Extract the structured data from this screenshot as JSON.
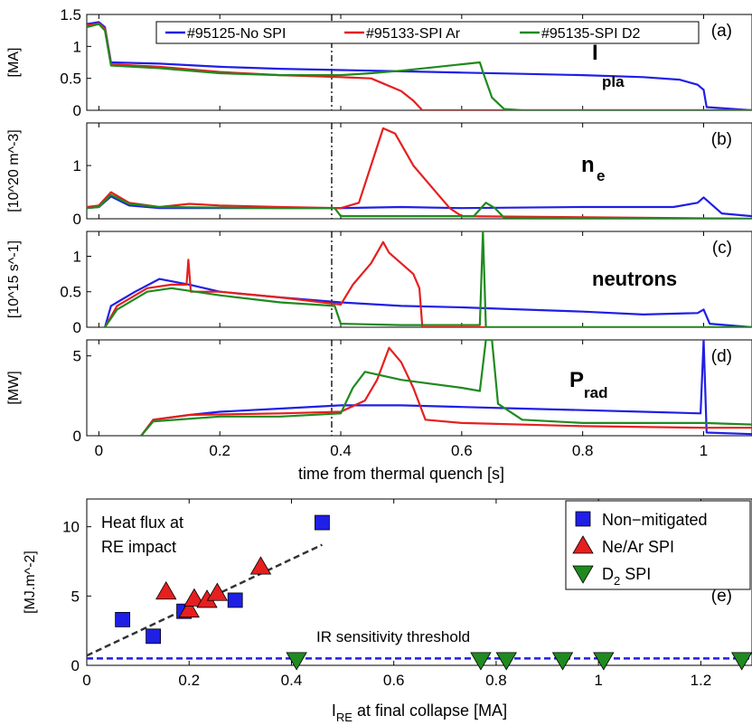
{
  "chart_data": [
    {
      "panel": "(a)",
      "type": "line",
      "ylabel": "[MA]",
      "yticks": [
        "0",
        "0.5",
        "1",
        "1.5"
      ],
      "ylim": [
        0,
        1.5
      ],
      "xlim": [
        -0.02,
        1.08
      ],
      "annotation": {
        "main": "I",
        "sub": "pla"
      },
      "legend_entries": [
        "#95125-No SPI",
        "#95133-SPI Ar",
        "#95135-SPI D2"
      ],
      "series": [
        {
          "name": "#95125-No SPI",
          "color": "#1f1fe6",
          "points": [
            [
              -0.02,
              1.35
            ],
            [
              0.0,
              1.38
            ],
            [
              0.01,
              1.3
            ],
            [
              0.02,
              0.75
            ],
            [
              0.1,
              0.73
            ],
            [
              0.2,
              0.68
            ],
            [
              0.3,
              0.65
            ],
            [
              0.4,
              0.63
            ],
            [
              0.5,
              0.61
            ],
            [
              0.6,
              0.59
            ],
            [
              0.7,
              0.57
            ],
            [
              0.8,
              0.55
            ],
            [
              0.9,
              0.52
            ],
            [
              0.96,
              0.48
            ],
            [
              0.99,
              0.4
            ],
            [
              1.0,
              0.32
            ],
            [
              1.005,
              0.05
            ],
            [
              1.08,
              0.0
            ]
          ]
        },
        {
          "name": "#95133-SPI Ar",
          "color": "#e61f1f",
          "points": [
            [
              -0.02,
              1.33
            ],
            [
              0.0,
              1.36
            ],
            [
              0.01,
              1.28
            ],
            [
              0.02,
              0.72
            ],
            [
              0.1,
              0.68
            ],
            [
              0.2,
              0.6
            ],
            [
              0.3,
              0.55
            ],
            [
              0.4,
              0.52
            ],
            [
              0.45,
              0.5
            ],
            [
              0.47,
              0.42
            ],
            [
              0.5,
              0.3
            ],
            [
              0.52,
              0.15
            ],
            [
              0.535,
              0.0
            ],
            [
              1.08,
              0.0
            ]
          ]
        },
        {
          "name": "#95135-SPI D2",
          "color": "#1f8a1f",
          "points": [
            [
              -0.02,
              1.3
            ],
            [
              0.0,
              1.35
            ],
            [
              0.01,
              1.25
            ],
            [
              0.02,
              0.7
            ],
            [
              0.1,
              0.66
            ],
            [
              0.2,
              0.58
            ],
            [
              0.3,
              0.55
            ],
            [
              0.4,
              0.55
            ],
            [
              0.45,
              0.58
            ],
            [
              0.5,
              0.62
            ],
            [
              0.55,
              0.67
            ],
            [
              0.6,
              0.72
            ],
            [
              0.63,
              0.75
            ],
            [
              0.635,
              0.6
            ],
            [
              0.65,
              0.2
            ],
            [
              0.67,
              0.02
            ],
            [
              0.7,
              0.0
            ],
            [
              1.08,
              0.0
            ]
          ]
        }
      ]
    },
    {
      "panel": "(b)",
      "type": "line",
      "ylabel": "[10^20 m^-3]",
      "yticks": [
        "0",
        "1"
      ],
      "ylim": [
        0,
        1.8
      ],
      "xlim": [
        -0.02,
        1.08
      ],
      "annotation": {
        "main": "n",
        "sub": "e"
      },
      "series": [
        {
          "name": "#95125-No SPI",
          "color": "#1f1fe6",
          "points": [
            [
              -0.02,
              0.2
            ],
            [
              0.0,
              0.22
            ],
            [
              0.02,
              0.42
            ],
            [
              0.05,
              0.25
            ],
            [
              0.1,
              0.2
            ],
            [
              0.3,
              0.2
            ],
            [
              0.4,
              0.2
            ],
            [
              0.5,
              0.22
            ],
            [
              0.6,
              0.2
            ],
            [
              0.8,
              0.22
            ],
            [
              0.95,
              0.22
            ],
            [
              0.99,
              0.3
            ],
            [
              1.0,
              0.4
            ],
            [
              1.01,
              0.3
            ],
            [
              1.03,
              0.1
            ],
            [
              1.08,
              0.05
            ]
          ]
        },
        {
          "name": "#95133-SPI Ar",
          "color": "#e61f1f",
          "points": [
            [
              -0.02,
              0.22
            ],
            [
              0.0,
              0.25
            ],
            [
              0.02,
              0.5
            ],
            [
              0.05,
              0.3
            ],
            [
              0.1,
              0.22
            ],
            [
              0.15,
              0.28
            ],
            [
              0.2,
              0.25
            ],
            [
              0.3,
              0.22
            ],
            [
              0.4,
              0.2
            ],
            [
              0.43,
              0.3
            ],
            [
              0.45,
              1.0
            ],
            [
              0.47,
              1.7
            ],
            [
              0.49,
              1.6
            ],
            [
              0.5,
              1.4
            ],
            [
              0.52,
              1.0
            ],
            [
              0.55,
              0.6
            ],
            [
              0.58,
              0.2
            ],
            [
              0.6,
              0.05
            ],
            [
              1.08,
              0.0
            ]
          ]
        },
        {
          "name": "#95135-SPI D2",
          "color": "#1f8a1f",
          "points": [
            [
              -0.02,
              0.2
            ],
            [
              0.0,
              0.22
            ],
            [
              0.02,
              0.45
            ],
            [
              0.05,
              0.28
            ],
            [
              0.1,
              0.22
            ],
            [
              0.3,
              0.2
            ],
            [
              0.39,
              0.2
            ],
            [
              0.4,
              0.05
            ],
            [
              0.62,
              0.05
            ],
            [
              0.64,
              0.3
            ],
            [
              0.655,
              0.2
            ],
            [
              0.67,
              0.02
            ],
            [
              1.08,
              0.0
            ]
          ]
        }
      ]
    },
    {
      "panel": "(c)",
      "type": "line",
      "ylabel": "[10^15 s^-1]",
      "yticks": [
        "0",
        "0.5",
        "1"
      ],
      "ylim": [
        0,
        1.35
      ],
      "xlim": [
        -0.02,
        1.08
      ],
      "annotation": {
        "main": "neutrons"
      },
      "series": [
        {
          "name": "#95125-No SPI",
          "color": "#1f1fe6",
          "points": [
            [
              0.01,
              0.0
            ],
            [
              0.02,
              0.3
            ],
            [
              0.06,
              0.5
            ],
            [
              0.1,
              0.68
            ],
            [
              0.15,
              0.6
            ],
            [
              0.2,
              0.5
            ],
            [
              0.3,
              0.42
            ],
            [
              0.4,
              0.35
            ],
            [
              0.5,
              0.3
            ],
            [
              0.6,
              0.28
            ],
            [
              0.7,
              0.25
            ],
            [
              0.8,
              0.22
            ],
            [
              0.9,
              0.18
            ],
            [
              0.99,
              0.2
            ],
            [
              1.0,
              0.25
            ],
            [
              1.01,
              0.05
            ],
            [
              1.08,
              0.0
            ]
          ]
        },
        {
          "name": "#95133-SPI Ar",
          "color": "#e61f1f",
          "points": [
            [
              0.01,
              0.0
            ],
            [
              0.03,
              0.3
            ],
            [
              0.08,
              0.55
            ],
            [
              0.12,
              0.6
            ],
            [
              0.145,
              0.6
            ],
            [
              0.148,
              0.95
            ],
            [
              0.152,
              0.5
            ],
            [
              0.2,
              0.5
            ],
            [
              0.3,
              0.42
            ],
            [
              0.4,
              0.32
            ],
            [
              0.42,
              0.6
            ],
            [
              0.45,
              0.9
            ],
            [
              0.47,
              1.2
            ],
            [
              0.48,
              1.05
            ],
            [
              0.5,
              0.9
            ],
            [
              0.52,
              0.75
            ],
            [
              0.53,
              0.55
            ],
            [
              0.535,
              0.0
            ],
            [
              1.08,
              0.0
            ]
          ]
        },
        {
          "name": "#95135-SPI D2",
          "color": "#1f8a1f",
          "points": [
            [
              0.01,
              0.0
            ],
            [
              0.03,
              0.25
            ],
            [
              0.08,
              0.5
            ],
            [
              0.12,
              0.55
            ],
            [
              0.2,
              0.45
            ],
            [
              0.3,
              0.35
            ],
            [
              0.39,
              0.3
            ],
            [
              0.4,
              0.05
            ],
            [
              0.5,
              0.03
            ],
            [
              0.63,
              0.03
            ],
            [
              0.635,
              1.35
            ],
            [
              0.64,
              0.0
            ],
            [
              1.08,
              0.0
            ]
          ]
        }
      ]
    },
    {
      "panel": "(d)",
      "type": "line",
      "ylabel": "[MW]",
      "yticks": [
        "0",
        "5"
      ],
      "ylim": [
        0,
        6
      ],
      "xlim": [
        -0.02,
        1.08
      ],
      "xticks": [
        "0",
        "0.2",
        "0.4",
        "0.6",
        "0.8",
        "1"
      ],
      "xlabel": "time from thermal quench [s]",
      "annotation": {
        "main": "P",
        "sub": "rad"
      },
      "series": [
        {
          "name": "#95125-No SPI",
          "color": "#1f1fe6",
          "points": [
            [
              0.07,
              0.0
            ],
            [
              0.09,
              1.0
            ],
            [
              0.15,
              1.3
            ],
            [
              0.2,
              1.5
            ],
            [
              0.3,
              1.7
            ],
            [
              0.4,
              1.9
            ],
            [
              0.5,
              1.9
            ],
            [
              0.6,
              1.8
            ],
            [
              0.7,
              1.7
            ],
            [
              0.8,
              1.6
            ],
            [
              0.9,
              1.5
            ],
            [
              0.995,
              1.4
            ],
            [
              1.0,
              6.0
            ],
            [
              1.005,
              0.2
            ],
            [
              1.08,
              0.1
            ]
          ]
        },
        {
          "name": "#95133-SPI Ar",
          "color": "#e61f1f",
          "points": [
            [
              0.07,
              0.0
            ],
            [
              0.09,
              1.0
            ],
            [
              0.15,
              1.3
            ],
            [
              0.3,
              1.4
            ],
            [
              0.4,
              1.5
            ],
            [
              0.44,
              2.2
            ],
            [
              0.46,
              3.5
            ],
            [
              0.48,
              5.5
            ],
            [
              0.5,
              4.6
            ],
            [
              0.52,
              3.0
            ],
            [
              0.54,
              1.0
            ],
            [
              0.6,
              0.8
            ],
            [
              0.8,
              0.6
            ],
            [
              1.0,
              0.5
            ],
            [
              1.08,
              0.5
            ]
          ]
        },
        {
          "name": "#95135-SPI D2",
          "color": "#1f8a1f",
          "points": [
            [
              0.07,
              0.0
            ],
            [
              0.09,
              0.9
            ],
            [
              0.2,
              1.2
            ],
            [
              0.3,
              1.2
            ],
            [
              0.4,
              1.4
            ],
            [
              0.42,
              3.0
            ],
            [
              0.44,
              4.0
            ],
            [
              0.5,
              3.5
            ],
            [
              0.6,
              3.0
            ],
            [
              0.63,
              2.8
            ],
            [
              0.64,
              6.0
            ],
            [
              0.65,
              6.0
            ],
            [
              0.66,
              2.0
            ],
            [
              0.7,
              1.0
            ],
            [
              0.8,
              0.8
            ],
            [
              1.0,
              0.8
            ],
            [
              1.08,
              0.7
            ]
          ]
        }
      ]
    },
    {
      "panel": "(e)",
      "type": "scatter",
      "ylabel": "[MJ.m^-2]",
      "yticks": [
        "0",
        "5",
        "10"
      ],
      "xticks": [
        "0",
        "0.2",
        "0.4",
        "0.6",
        "0.8",
        "1",
        "1.2"
      ],
      "ylim": [
        0,
        12
      ],
      "xlim": [
        0,
        1.3
      ],
      "xlabel_main": "I",
      "xlabel_sub": "RE",
      "xlabel_rest": " at final collapse [MA]",
      "annotation_lines": [
        "Heat flux at",
        "RE impact"
      ],
      "threshold_label": "IR sensitivity threshold",
      "threshold_y": 0.5,
      "fit_line": [
        [
          0,
          0.7
        ],
        [
          0.46,
          8.7
        ]
      ],
      "legend": [
        {
          "label": "Non−mitigated",
          "marker": "square",
          "color": "#1f1fe6"
        },
        {
          "label": "Ne/Ar SPI",
          "marker": "triangle-up",
          "color": "#e61f1f"
        },
        {
          "label_main": "D",
          "label_sub": "2",
          "label_rest": " SPI",
          "marker": "triangle-down",
          "color": "#1f8a1f"
        }
      ],
      "series": [
        {
          "name": "Non−mitigated",
          "marker": "square",
          "color": "#1f1fe6",
          "points": [
            [
              0.07,
              3.3
            ],
            [
              0.13,
              2.1
            ],
            [
              0.19,
              3.9
            ],
            [
              0.29,
              4.7
            ],
            [
              0.46,
              10.3
            ]
          ]
        },
        {
          "name": "Ne/Ar SPI",
          "marker": "triangle-up",
          "color": "#e61f1f",
          "points": [
            [
              0.155,
              5.3
            ],
            [
              0.2,
              4.0
            ],
            [
              0.21,
              4.8
            ],
            [
              0.235,
              4.7
            ],
            [
              0.255,
              5.2
            ],
            [
              0.34,
              7.1
            ]
          ]
        },
        {
          "name": "D2 SPI",
          "marker": "triangle-down",
          "color": "#1f8a1f",
          "points": [
            [
              0.41,
              0.4
            ],
            [
              0.77,
              0.4
            ],
            [
              0.82,
              0.4
            ],
            [
              0.93,
              0.4
            ],
            [
              1.01,
              0.4
            ],
            [
              1.28,
              0.4
            ]
          ]
        }
      ]
    }
  ]
}
